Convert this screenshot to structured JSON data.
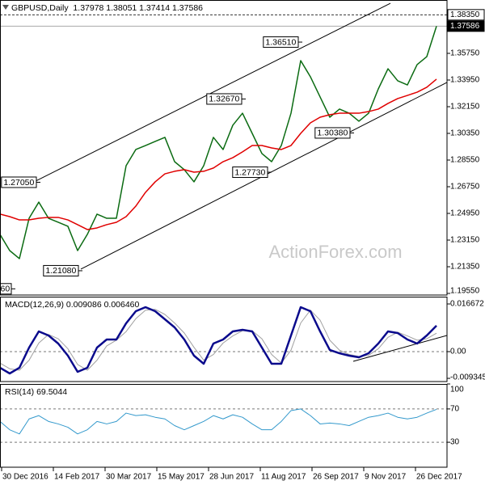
{
  "chart_data": [
    {
      "type": "line",
      "title": "GBPUSD,Daily  1.37978 1.38051 1.37414 1.37586",
      "watermark": "ActionForex.com",
      "x": [
        0,
        6,
        12,
        18,
        24,
        30,
        36,
        42,
        48,
        54,
        60,
        66,
        72,
        78,
        84,
        90,
        96,
        102,
        108,
        114,
        120,
        126,
        132,
        138,
        144,
        150,
        156,
        162,
        168,
        174,
        180,
        186,
        192,
        198,
        204,
        210,
        216,
        222,
        228,
        234,
        240,
        246,
        252,
        258,
        264,
        270
      ],
      "xlim": [
        0,
        276.5
      ],
      "ylim": [
        1.1944,
        1.3935
      ],
      "yticks": [
        {
          "value": 1.3575,
          "label": "1.35750"
        },
        {
          "value": 1.3395,
          "label": "1.33950"
        },
        {
          "value": 1.3215,
          "label": "1.32150"
        },
        {
          "value": 1.3035,
          "label": "1.30350"
        },
        {
          "value": 1.2855,
          "label": "1.28550"
        },
        {
          "value": 1.2675,
          "label": "1.26750"
        },
        {
          "value": 1.2495,
          "label": "1.24950"
        },
        {
          "value": 1.2315,
          "label": "1.23150"
        },
        {
          "value": 1.2135,
          "label": "1.21350"
        },
        {
          "value": 1.1955,
          "label": "1.19550"
        }
      ],
      "series": [
        {
          "color": "#0b6b12",
          "line_width": 1.5,
          "values": [
            1.2353,
            1.2244,
            1.219,
            1.2462,
            1.2571,
            1.2462,
            1.2435,
            1.2408,
            1.2244,
            1.2353,
            1.249,
            1.2462,
            1.2462,
            1.2817,
            1.2926,
            1.2953,
            1.2981,
            1.3008,
            1.2844,
            1.279,
            1.2708,
            1.2817,
            1.3008,
            1.2926,
            1.309,
            1.3171,
            1.3035,
            1.2899,
            1.2844,
            1.2953,
            1.3171,
            1.3526,
            1.3417,
            1.3281,
            1.3144,
            1.3199,
            1.3171,
            1.3117,
            1.3171,
            1.3335,
            1.3471,
            1.339,
            1.3362,
            1.3499,
            1.3553,
            1.37586
          ]
        },
        {
          "color": "#e00000",
          "line_width": 1.5,
          "values": [
            1.249,
            1.2473,
            1.2451,
            1.2451,
            1.2462,
            1.2468,
            1.2468,
            1.2451,
            1.2419,
            1.2386,
            1.2397,
            1.2419,
            1.2435,
            1.2473,
            1.2544,
            1.2637,
            1.2708,
            1.2762,
            1.2779,
            1.279,
            1.2773,
            1.2779,
            1.2801,
            1.2844,
            1.2871,
            1.291,
            1.2953,
            1.2953,
            1.2937,
            1.2926,
            1.2953,
            1.3035,
            1.3106,
            1.3144,
            1.3161,
            1.3171,
            1.3171,
            1.3171,
            1.3182,
            1.3199,
            1.3237,
            1.327,
            1.3291,
            1.3313,
            1.3346,
            1.3401
          ]
        }
      ],
      "reference_lines": [
        {
          "value": 1.3835,
          "label": "1.38350",
          "style": "dashed"
        },
        {
          "value": 1.37586,
          "label": "1.37586",
          "style": "last"
        }
      ],
      "trendlines": [
        {
          "x": [
            20,
            241.5
          ],
          "y": [
            1.2702,
            1.3913
          ]
        },
        {
          "x": [
            50,
            276.5
          ],
          "y": [
            1.2119,
            1.3379
          ]
        }
      ],
      "annotations": [
        {
          "x": 25,
          "value": 1.2705,
          "label": "1.27050"
        },
        {
          "x": 51,
          "value": 1.2108,
          "label": "1.21080"
        },
        {
          "x": 9.5,
          "value": 1.1986,
          "label": "60"
        },
        {
          "x": 152,
          "value": 1.3267,
          "label": "1.32670"
        },
        {
          "x": 168,
          "value": 1.2773,
          "label": "1.27730"
        },
        {
          "x": 187,
          "value": 1.3651,
          "label": "1.36510"
        },
        {
          "x": 219,
          "value": 1.3038,
          "label": "1.30380"
        }
      ]
    },
    {
      "type": "line",
      "title": "MACD(12,26,9) 0.009086 0.006460",
      "x": [
        0,
        6,
        12,
        18,
        24,
        30,
        36,
        42,
        48,
        54,
        60,
        66,
        72,
        78,
        84,
        90,
        96,
        102,
        108,
        114,
        120,
        126,
        132,
        138,
        144,
        150,
        156,
        162,
        168,
        174,
        180,
        186,
        192,
        198,
        204,
        210,
        216,
        222,
        228,
        234,
        240,
        246,
        252,
        258,
        264,
        270
      ],
      "xlim": [
        0,
        276.5
      ],
      "ylim": [
        -0.01046,
        0.01922
      ],
      "yticks": [
        0.016672,
        {
          "value": 0,
          "label": "0.00"
        },
        -0.009345
      ],
      "zero_line": true,
      "series": [
        {
          "color": "#a0a0a0",
          "line_width": 1,
          "values": [
            -0.004,
            -0.006,
            -0.0065,
            -0.003,
            0.003,
            0.006,
            0.0045,
            0.001,
            -0.0045,
            -0.0065,
            -0.003,
            0.002,
            0.004,
            0.007,
            0.0115,
            0.0145,
            0.0148,
            0.013,
            0.01,
            0.0065,
            0.0015,
            -0.003,
            -0.001,
            0.003,
            0.0055,
            0.0073,
            0.0073,
            0.0045,
            -0.001,
            -0.004,
            0.0005,
            0.01,
            0.0145,
            0.011,
            0.004,
            0.0005,
            -0.001,
            -0.0017,
            -0.0013,
            0.001,
            0.005,
            0.0068,
            0.0055,
            0.004,
            0.0045,
            0.00646
          ]
        },
        {
          "color": "#0a0a8c",
          "line_width": 2.5,
          "values": [
            -0.00565,
            -0.00763,
            -0.00565,
            0.00141,
            0.00707,
            0.00565,
            0.00283,
            -0.00141,
            -0.00707,
            -0.00565,
            0.00141,
            0.00424,
            0.00424,
            0.00989,
            0.01413,
            0.01554,
            0.01413,
            0.0113,
            0.00848,
            0.00424,
            -0.00141,
            -0.00424,
            0.00283,
            0.00424,
            0.00707,
            0.00763,
            0.00707,
            0.00141,
            -0.00424,
            -0.00424,
            0.00565,
            0.01554,
            0.01413,
            0.00707,
            0.00057,
            -0.00057,
            -0.00141,
            -0.00198,
            -0.00057,
            0.00283,
            0.00707,
            0.0065,
            0.00424,
            0.00283,
            0.00565,
            0.009086
          ]
        }
      ],
      "trendlines": [
        {
          "x": [
            218.5,
            276.5
          ],
          "y": [
            -0.00339,
            0.00565
          ]
        }
      ]
    },
    {
      "type": "line",
      "title": "RSI(14) 69.5044",
      "x": [
        0,
        6,
        12,
        18,
        24,
        30,
        36,
        42,
        48,
        54,
        60,
        66,
        72,
        78,
        84,
        90,
        96,
        102,
        108,
        114,
        120,
        126,
        132,
        138,
        144,
        150,
        156,
        162,
        168,
        174,
        180,
        186,
        192,
        198,
        204,
        210,
        216,
        222,
        228,
        234,
        240,
        246,
        252,
        258,
        264,
        270
      ],
      "xlim": [
        0,
        276.5
      ],
      "xticks": [
        {
          "value": 1,
          "label": "30 Dec 2016"
        },
        {
          "value": 33,
          "label": "14 Feb 2017"
        },
        {
          "value": 65,
          "label": "30 Mar 2017"
        },
        {
          "value": 97,
          "label": "15 May 2017"
        },
        {
          "value": 129,
          "label": "28 Jun 2017"
        },
        {
          "value": 161,
          "label": "11 Aug 2017"
        },
        {
          "value": 193,
          "label": "26 Sep 2017"
        },
        {
          "value": 225,
          "label": "9 Nov 2017"
        },
        {
          "value": 257,
          "label": "26 Dec 2017"
        }
      ],
      "ylim": [
        0,
        100
      ],
      "yticks": [
        100,
        70,
        30
      ],
      "grid": true,
      "series": [
        {
          "color": "#3399cc",
          "line_width": 1,
          "values": [
            55,
            45,
            40,
            58,
            62,
            55,
            52,
            48,
            40,
            45,
            55,
            52,
            55,
            65,
            62,
            63,
            60,
            58,
            50,
            45,
            50,
            55,
            62,
            58,
            63,
            60,
            52,
            45,
            45,
            55,
            68,
            70,
            62,
            52,
            53,
            52,
            50,
            55,
            60,
            62,
            65,
            60,
            58,
            60,
            65,
            69.5044
          ]
        }
      ]
    }
  ]
}
